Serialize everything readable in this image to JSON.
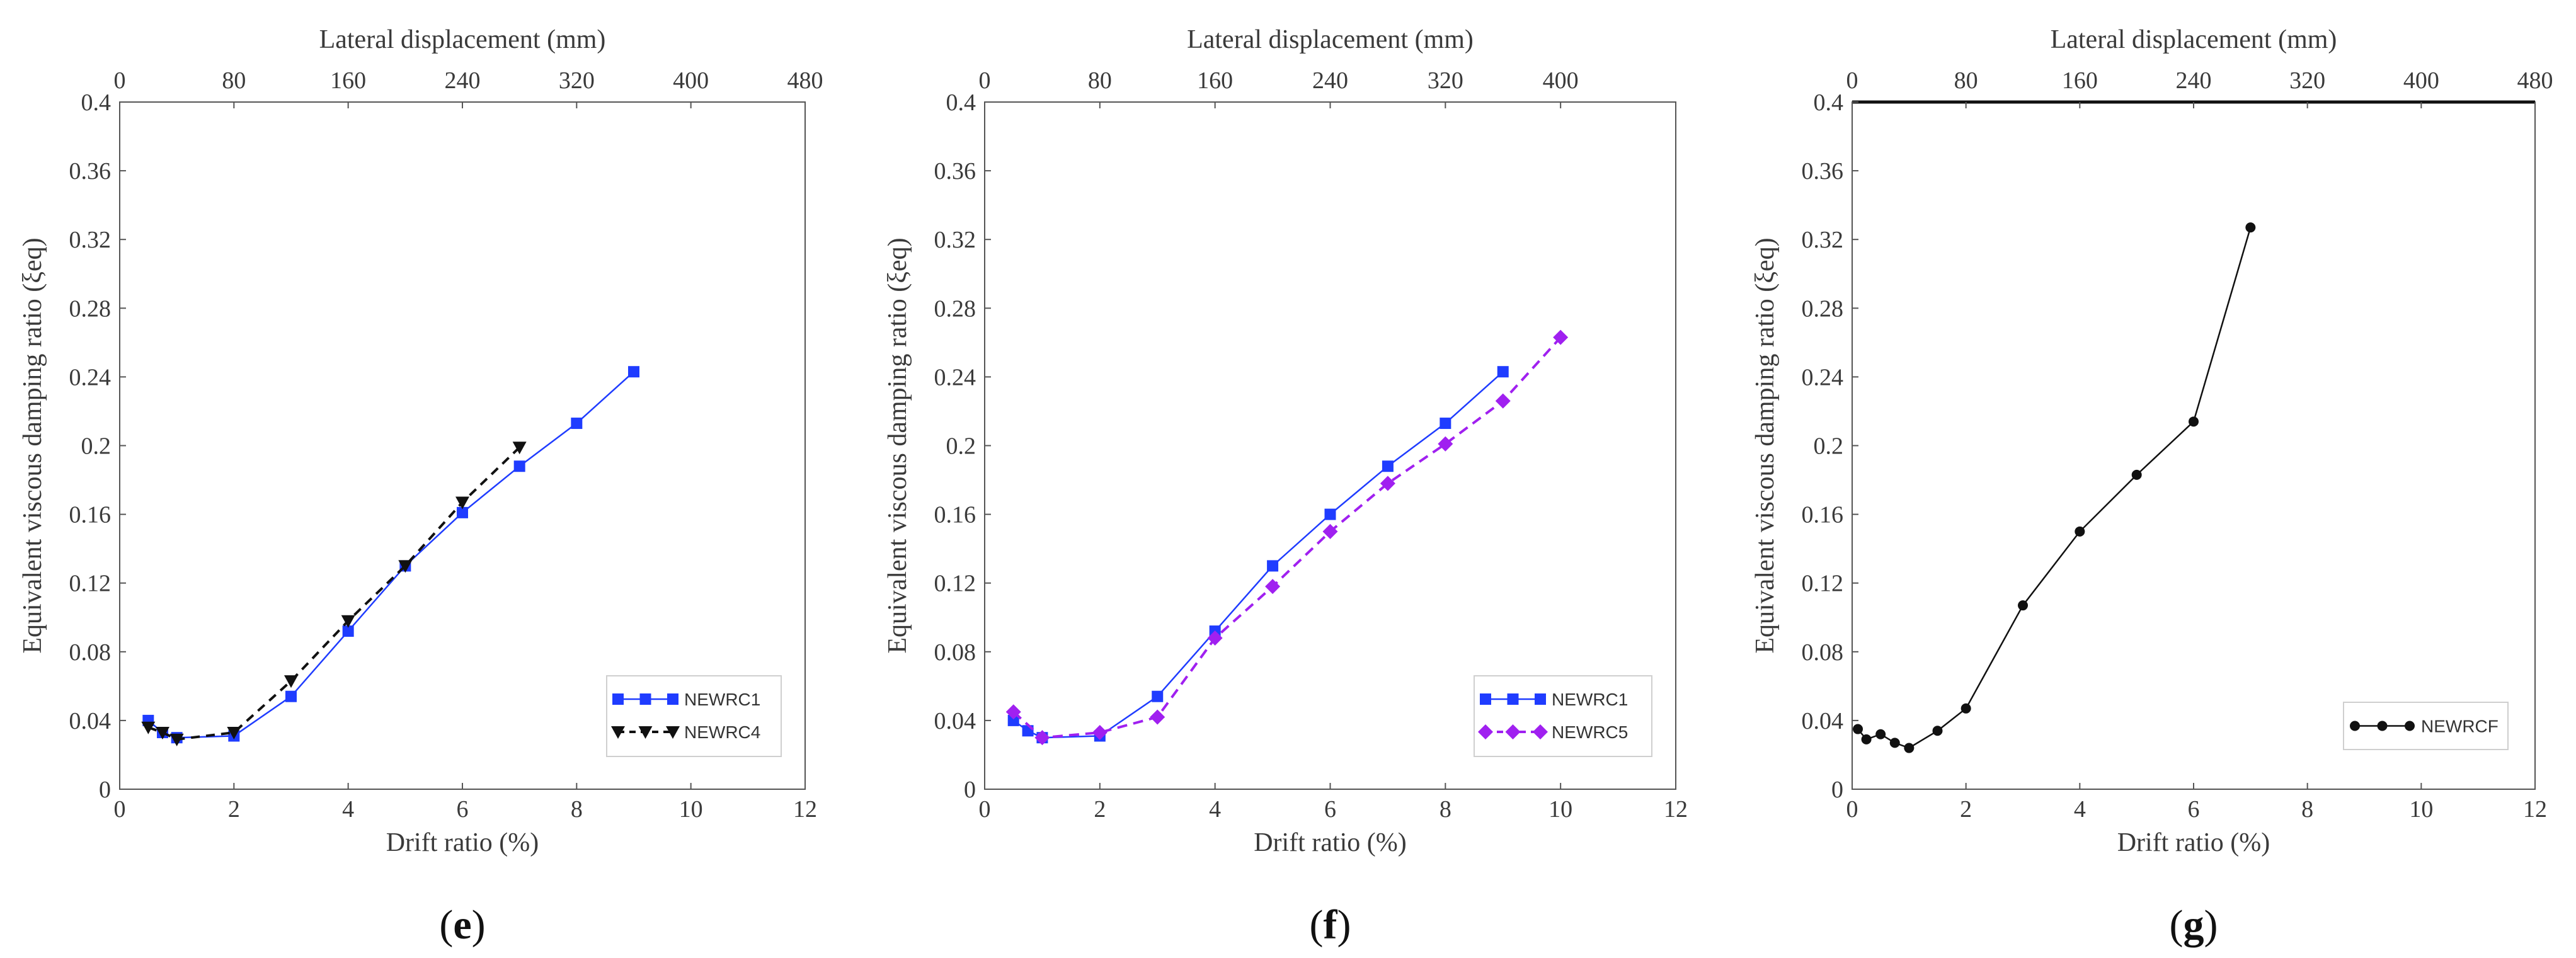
{
  "chart_data": [
    {
      "type": "line",
      "panel_label": "e",
      "xlabel": "Drift ratio (%)",
      "ylabel": "Equivalent viscous damping ratio (ξeq)",
      "x2label": "Lateral displacement (mm)",
      "xlim": [
        0,
        12
      ],
      "ylim": [
        0,
        0.4
      ],
      "x2lim": [
        0,
        480
      ],
      "xticks": [
        "0",
        "2",
        "4",
        "6",
        "8",
        "10",
        "12"
      ],
      "yticks": [
        "0",
        "0.04",
        "0.08",
        "0.12",
        "0.16",
        "0.2",
        "0.24",
        "0.28",
        "0.32",
        "0.36",
        "0.4"
      ],
      "x2ticks": [
        "0",
        "80",
        "160",
        "240",
        "320",
        "400",
        "480"
      ],
      "legend_position": "bottom-right",
      "series": [
        {
          "name": "NEWRC1",
          "color": "#1f3cff",
          "marker": "square",
          "dash": "solid",
          "x": [
            0.5,
            0.75,
            1,
            2,
            3,
            4,
            5,
            6,
            7,
            8,
            9
          ],
          "y": [
            0.04,
            0.033,
            0.03,
            0.031,
            0.054,
            0.092,
            0.13,
            0.161,
            0.188,
            0.213,
            0.243
          ]
        },
        {
          "name": "NEWRC4",
          "color": "#111111",
          "marker": "triangle-down",
          "dash": "dashed",
          "x": [
            0.5,
            0.75,
            1,
            2,
            3,
            4,
            5,
            6,
            7
          ],
          "y": [
            0.036,
            0.033,
            0.029,
            0.033,
            0.063,
            0.098,
            0.13,
            0.167,
            0.199
          ]
        }
      ]
    },
    {
      "type": "line",
      "panel_label": "f",
      "xlabel": "Drift ratio (%)",
      "ylabel": "Equivalent viscous damping ratio (ξeq)",
      "x2label": "Lateral displacement (mm)",
      "xlim": [
        0,
        12
      ],
      "ylim": [
        0,
        0.4
      ],
      "x2lim": [
        0,
        480
      ],
      "xticks": [
        "0",
        "2",
        "4",
        "6",
        "8",
        "10",
        "12"
      ],
      "yticks": [
        "0",
        "0.04",
        "0.08",
        "0.12",
        "0.16",
        "0.2",
        "0.24",
        "0.28",
        "0.32",
        "0.36",
        "0.4"
      ],
      "x2ticks": [
        "0",
        "80",
        "160",
        "240",
        "320",
        "400"
      ],
      "legend_position": "bottom-right",
      "series": [
        {
          "name": "NEWRC1",
          "color": "#1f3cff",
          "marker": "square",
          "dash": "solid",
          "x": [
            0.5,
            0.75,
            1,
            2,
            3,
            4,
            5,
            6,
            7,
            8,
            9
          ],
          "y": [
            0.04,
            0.034,
            0.03,
            0.031,
            0.054,
            0.092,
            0.13,
            0.16,
            0.188,
            0.213,
            0.243
          ]
        },
        {
          "name": "NEWRC5",
          "color": "#a020f0",
          "marker": "diamond",
          "dash": "dashed",
          "x": [
            0.5,
            1,
            2,
            3,
            4,
            5,
            6,
            7,
            8,
            9,
            10
          ],
          "y": [
            0.045,
            0.03,
            0.033,
            0.042,
            0.088,
            0.118,
            0.15,
            0.178,
            0.201,
            0.226,
            0.263
          ]
        }
      ]
    },
    {
      "type": "line",
      "panel_label": "g",
      "xlabel": "Drift ratio (%)",
      "ylabel": "Equivalent viscous damping ratio (ξeq)",
      "x2label": "Lateral displacement (mm)",
      "xlim": [
        0,
        12
      ],
      "ylim": [
        0,
        0.4
      ],
      "x2lim": [
        0,
        480
      ],
      "xticks": [
        "0",
        "2",
        "4",
        "6",
        "8",
        "10",
        "12"
      ],
      "yticks": [
        "0",
        "0.04",
        "0.08",
        "0.12",
        "0.16",
        "0.2",
        "0.24",
        "0.28",
        "0.32",
        "0.36",
        "0.4"
      ],
      "x2ticks": [
        "0",
        "80",
        "160",
        "240",
        "320",
        "400",
        "480"
      ],
      "legend_position": "bottom-right",
      "series": [
        {
          "name": "NEWRCF",
          "color": "#111111",
          "marker": "circle",
          "dash": "solid",
          "x": [
            0.1,
            0.25,
            0.5,
            0.75,
            1,
            1.5,
            2,
            3,
            4,
            5,
            6,
            7
          ],
          "y": [
            0.035,
            0.029,
            0.032,
            0.027,
            0.024,
            0.034,
            0.047,
            0.107,
            0.15,
            0.183,
            0.214,
            0.327
          ]
        }
      ]
    }
  ]
}
